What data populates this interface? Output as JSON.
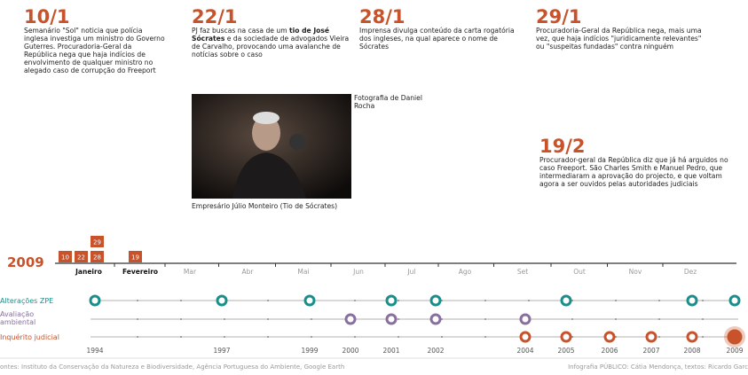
{
  "events": [
    {
      "date": "10/1",
      "text": "Semanário \"Sol\" noticia que polícia inglesa investiga um ministro do Governo Guterres. Procuradoria-Geral da República nega que haja indícios de envolvimento de qualquer ministro no alegado caso de corrupção do Freeport"
    },
    {
      "date": "22/1",
      "text_before": "PJ faz buscas na casa de um ",
      "text_bold": "tio de José Sócrates",
      "text_after": " e da sociedade de advogados Vieira de Carvalho, provocando uma avalanche de notícias sobre o caso"
    },
    {
      "date": "28/1",
      "text": "Imprensa divulga conteúdo da carta rogatória dos ingleses, na qual aparece o nome de Sócrates"
    },
    {
      "date": "29/1",
      "text": "Procuradoria-Geral da República nega, mais uma vez, que haja indícios \"juridicamente relevantes\" ou \"suspeitas fundadas\" contra ninguém"
    },
    {
      "date": "19/2",
      "text": "Procurador-geral da República diz que já há arguidos no caso Freeport. São Charles Smith e Manuel Pedro, que intermediaram a aprovação do projecto, e que voltam agora a ser ouvidos pelas autoridades judiciais"
    }
  ],
  "photo": {
    "credit": "Fotografia de Daniel Rocha",
    "caption": "Empresário Júlio Monteiro (Tio de Sócrates)"
  },
  "timeline": {
    "year": "2009",
    "months": [
      "Janeiro",
      "Fevereiro",
      "Mar",
      "Abr",
      "Mai",
      "Jun",
      "Jul",
      "Ago",
      "Set",
      "Out",
      "Nov",
      "Dez"
    ],
    "days": [
      "10",
      "22",
      "28",
      "29",
      "19"
    ]
  },
  "tracks": {
    "years": [
      1994,
      1997,
      1999,
      2000,
      2001,
      2002,
      2004,
      2005,
      2006,
      2007,
      2008,
      2009
    ],
    "rows": [
      {
        "name": "Alterações ZPE",
        "color": "#1a8f8a",
        "years": [
          1994,
          1997,
          1999,
          2001,
          2002,
          2005,
          2008,
          2009
        ]
      },
      {
        "name": "Avaliação ambiental",
        "color": "#8a6f9e",
        "years": [
          2000,
          2001,
          2002,
          2004
        ]
      },
      {
        "name": "Inquérito judicial",
        "color": "#c8522a",
        "years": [
          2004,
          2005,
          2006,
          2007,
          2008,
          2009
        ]
      }
    ]
  },
  "footer": {
    "sources": "ontes: Instituto da Conservação da Natureza e Biodiversidade, Agência Portuguesa do Ambiente, Google Earth",
    "credits": "Infografia PÚBLICO: Cátia Mendonça, textos: Ricardo Garc"
  }
}
